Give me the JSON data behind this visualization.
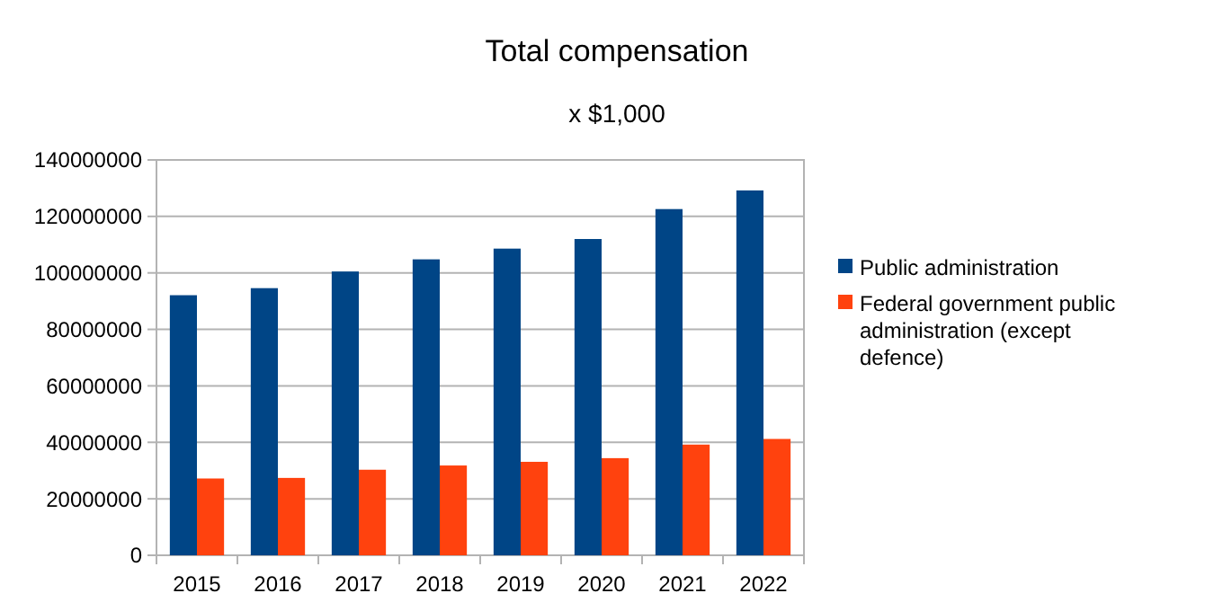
{
  "chart_data": {
    "type": "bar",
    "title": "Total compensation",
    "subtitle": "x $1,000",
    "categories": [
      "2015",
      "2016",
      "2017",
      "2018",
      "2019",
      "2020",
      "2021",
      "2022"
    ],
    "series": [
      {
        "name": "Public administration",
        "color": "#004586",
        "values": [
          92100000,
          94600000,
          100500000,
          104800000,
          108600000,
          112000000,
          122600000,
          129200000
        ]
      },
      {
        "name": "Federal government public administration (except defence)",
        "color": "#ff420e",
        "values": [
          27200000,
          27400000,
          30300000,
          31800000,
          33100000,
          34400000,
          39200000,
          41200000
        ]
      }
    ],
    "ylim": [
      0,
      140000000
    ],
    "yticks": [
      0,
      20000000,
      40000000,
      60000000,
      80000000,
      100000000,
      120000000,
      140000000
    ],
    "grid": "y",
    "legend": "right"
  }
}
